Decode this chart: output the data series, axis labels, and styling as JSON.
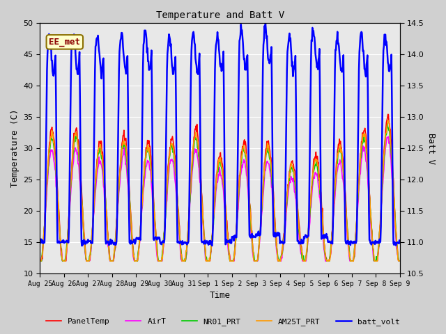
{
  "title": "Temperature and Batt V",
  "xlabel": "Time",
  "ylabel_left": "Temperature (C)",
  "ylabel_right": "Batt V",
  "ylim_left": [
    10,
    50
  ],
  "ylim_right": [
    10.5,
    14.5
  ],
  "annotation_text": "EE_met",
  "annotation_bg": "#ffffcc",
  "annotation_fg": "#8b0000",
  "fig_bg": "#d0d0d0",
  "plot_bg": "#e8e8e8",
  "xtick_labels": [
    "Aug 25",
    "Aug 26",
    "Aug 27",
    "Aug 28",
    "Aug 29",
    "Aug 30",
    "Aug 31",
    "Sep 1",
    "Sep 2",
    "Sep 3",
    "Sep 4",
    "Sep 5",
    "Sep 6",
    "Sep 7",
    "Sep 8",
    "Sep 9"
  ],
  "legend_entries": [
    "PanelTemp",
    "AirT",
    "NR01_PRT",
    "AM25T_PRT",
    "batt_volt"
  ],
  "legend_colors": [
    "#ff0000",
    "#ff00ff",
    "#00cc00",
    "#ff9900",
    "#0000ff"
  ],
  "line_widths": [
    1.2,
    1.2,
    1.2,
    1.2,
    1.8
  ]
}
